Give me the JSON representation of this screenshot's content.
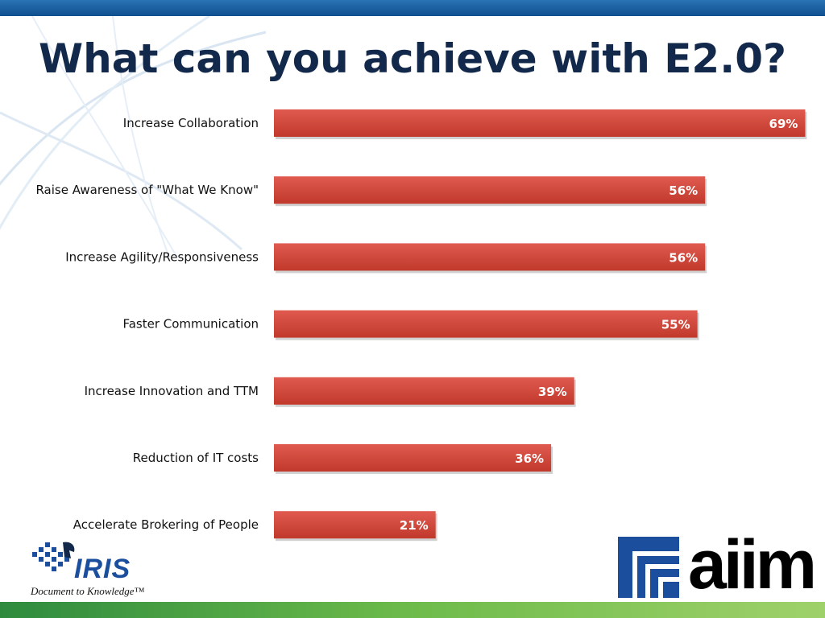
{
  "slide": {
    "title": "What can you achieve with E2.0?"
  },
  "colors": {
    "bar": "#c0392b",
    "bar_light": "#e05a50",
    "grid": "#b0303a",
    "grid_light": "#d8dde6",
    "title": "#13294b",
    "top_band": "#1a5c9e",
    "bottom_band": "#55ad4a"
  },
  "chart_data": {
    "type": "bar",
    "orientation": "horizontal",
    "categories": [
      "Increase Collaboration",
      "Raise Awareness of \"What We Know\"",
      "Increase Agility/Responsiveness",
      "Faster Communication",
      "Increase Innovation and TTM",
      "Reduction of IT costs",
      "Accelerate Brokering of People"
    ],
    "values": [
      69,
      56,
      56,
      55,
      39,
      36,
      21
    ],
    "value_labels": [
      "69%",
      "56%",
      "56%",
      "55%",
      "39%",
      "36%",
      "21%"
    ],
    "xlim": [
      0,
      70
    ],
    "grid": true
  },
  "logos": {
    "iris": {
      "word": "IRIS",
      "tagline": "Document to Knowledge™"
    },
    "aiim": {
      "word": "aiim"
    }
  }
}
